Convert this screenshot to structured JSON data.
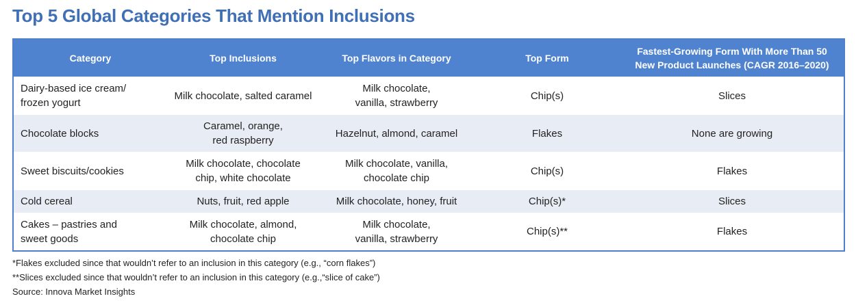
{
  "title": "Top 5 Global Categories That Mention Inclusions",
  "table": {
    "headers": [
      "Category",
      "Top Inclusions",
      "Top Flavors in Category",
      "Top Form",
      "Fastest-Growing Form With More Than 50\nNew Product Launches (CAGR 2016–2020)"
    ],
    "rows": [
      [
        "Dairy-based ice cream/\nfrozen yogurt",
        "Milk chocolate, salted caramel",
        "Milk chocolate,\nvanilla, strawberry",
        "Chip(s)",
        "Slices"
      ],
      [
        "Chocolate blocks",
        "Caramel, orange,\nred raspberry",
        "Hazelnut, almond, caramel",
        "Flakes",
        "None are growing"
      ],
      [
        "Sweet biscuits/cookies",
        "Milk chocolate, chocolate\nchip, white chocolate",
        "Milk chocolate, vanilla,\nchocolate chip",
        "Chip(s)",
        "Flakes"
      ],
      [
        "Cold cereal",
        "Nuts, fruit, red apple",
        "Milk chocolate, honey, fruit",
        "Chip(s)*",
        "Slices"
      ],
      [
        "Cakes – pastries and\nsweet goods",
        "Milk chocolate, almond,\nchocolate chip",
        "Milk chocolate,\nvanilla, strawberry",
        "Chip(s)**",
        "Flakes"
      ]
    ]
  },
  "footnotes": [
    "*Flakes excluded since that wouldn’t refer to an inclusion in this category (e.g., “corn flakes”)",
    "**Slices excluded since that wouldn’t refer to an inclusion in this category (e.g.,“slice of cake”)",
    "Source: Innova Market Insights"
  ],
  "colors": {
    "title": "#3f6fb5",
    "header_bg": "#4f83cf",
    "alt_row_bg": "#e8edf5",
    "border": "#4d7fcb"
  }
}
